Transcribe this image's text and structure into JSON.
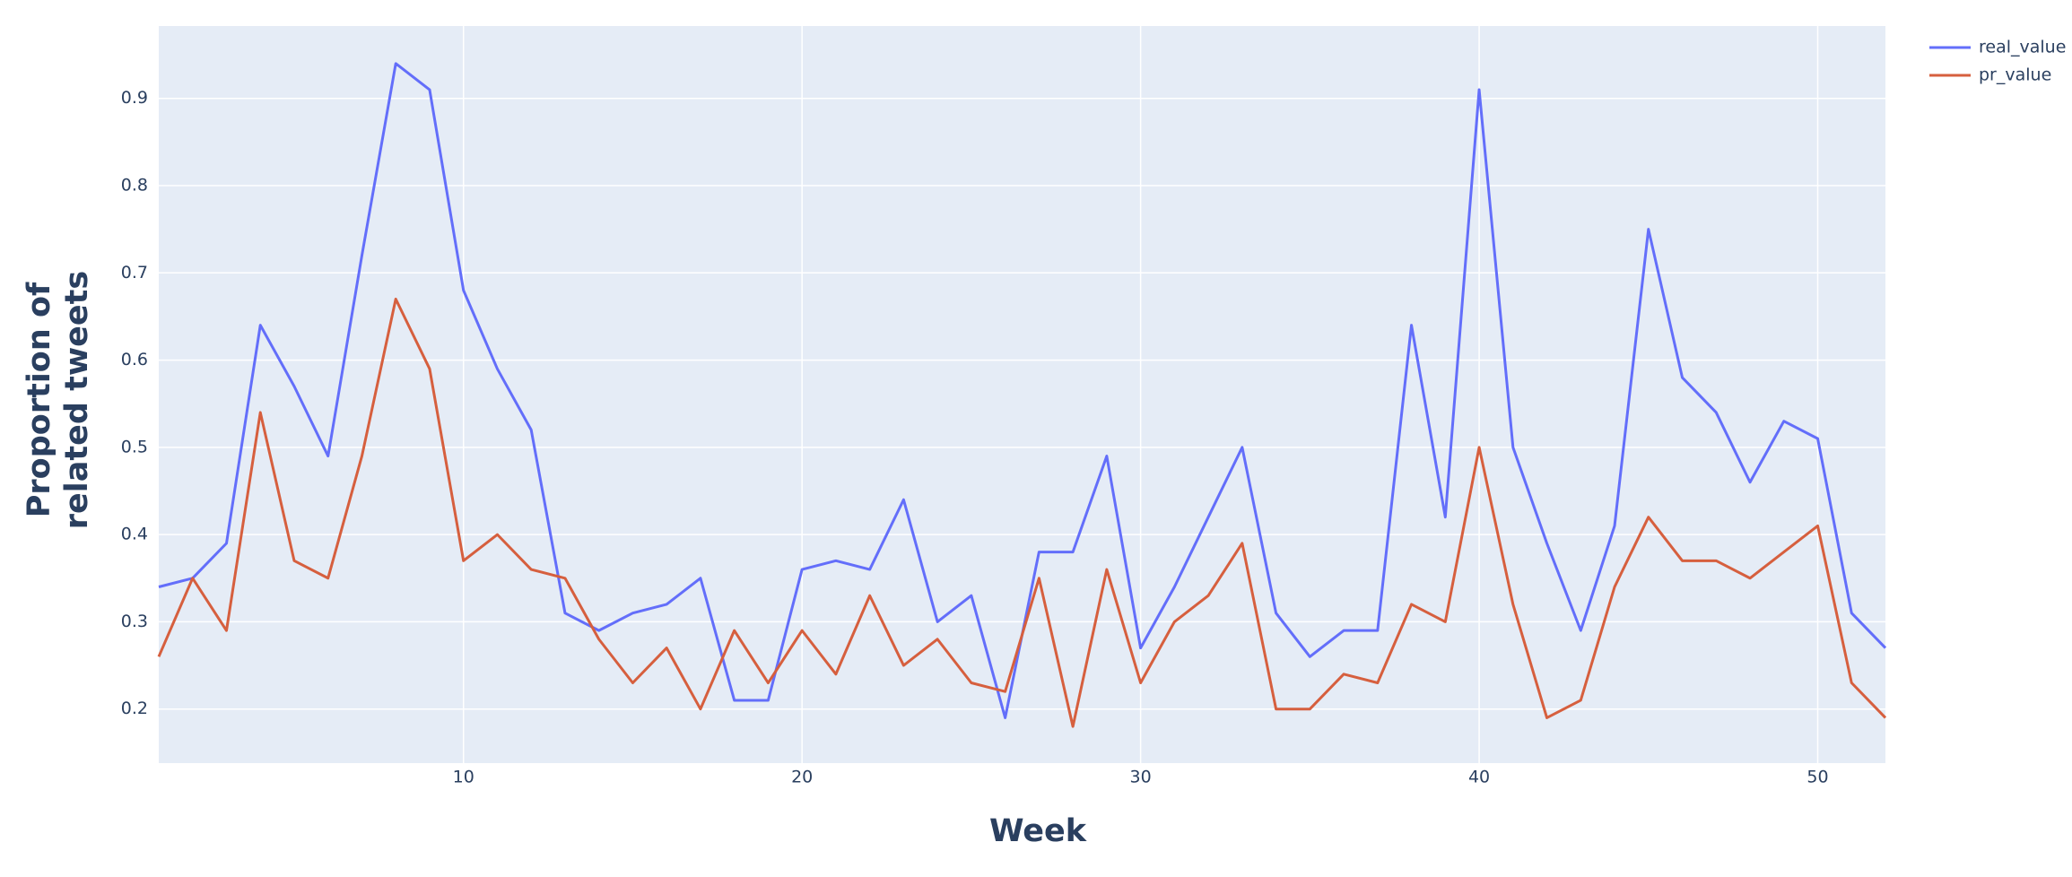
{
  "chart_data": {
    "type": "line",
    "xlabel": "Week",
    "ylabel": [
      "Proportion of",
      "related tweets"
    ],
    "x": [
      1,
      2,
      3,
      4,
      5,
      6,
      7,
      8,
      9,
      10,
      11,
      12,
      13,
      14,
      15,
      16,
      17,
      18,
      19,
      20,
      21,
      22,
      23,
      24,
      25,
      26,
      27,
      28,
      29,
      30,
      31,
      32,
      33,
      34,
      35,
      36,
      37,
      38,
      39,
      40,
      41,
      42,
      43,
      44,
      45,
      46,
      47,
      48,
      49,
      50,
      51,
      52
    ],
    "series": [
      {
        "name": "real_value",
        "color": "#636efa",
        "values": [
          0.34,
          0.35,
          0.39,
          0.64,
          0.57,
          0.49,
          0.72,
          0.94,
          0.91,
          0.68,
          0.59,
          0.52,
          0.31,
          0.29,
          0.31,
          0.32,
          0.35,
          0.21,
          0.21,
          0.36,
          0.37,
          0.36,
          0.44,
          0.3,
          0.33,
          0.19,
          0.38,
          0.38,
          0.49,
          0.27,
          0.34,
          0.42,
          0.5,
          0.31,
          0.26,
          0.29,
          0.29,
          0.64,
          0.42,
          0.91,
          0.5,
          0.39,
          0.29,
          0.41,
          0.75,
          0.58,
          0.54,
          0.46,
          0.53,
          0.51,
          0.31,
          0.27
        ]
      },
      {
        "name": "pr_value",
        "color": "#d65f3e",
        "values": [
          0.26,
          0.35,
          0.29,
          0.54,
          0.37,
          0.35,
          0.49,
          0.67,
          0.59,
          0.37,
          0.4,
          0.36,
          0.35,
          0.28,
          0.23,
          0.27,
          0.2,
          0.29,
          0.23,
          0.29,
          0.24,
          0.33,
          0.25,
          0.28,
          0.23,
          0.22,
          0.35,
          0.18,
          0.36,
          0.23,
          0.3,
          0.33,
          0.39,
          0.2,
          0.2,
          0.24,
          0.23,
          0.32,
          0.3,
          0.5,
          0.32,
          0.19,
          0.21,
          0.34,
          0.42,
          0.37,
          0.37,
          0.35,
          0.38,
          0.41,
          0.23,
          0.19
        ]
      }
    ],
    "xlim": [
      1,
      52
    ],
    "xticks": [
      10,
      20,
      30,
      40,
      50
    ],
    "ylim": [
      0.138,
      0.983
    ],
    "yticks": [
      0.2,
      0.3,
      0.4,
      0.5,
      0.6,
      0.7,
      0.8,
      0.9
    ],
    "grid": true,
    "legend": "outside-top-right"
  }
}
